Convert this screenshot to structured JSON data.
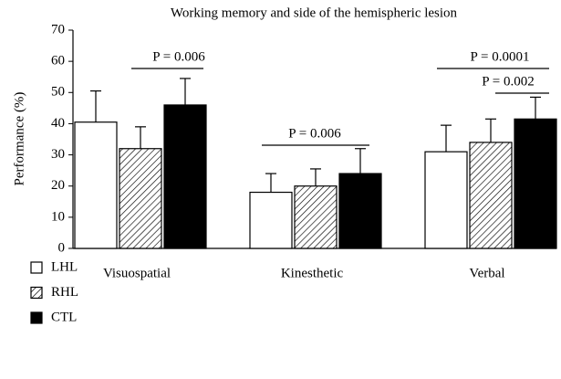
{
  "chart_data": {
    "type": "bar",
    "title": "Working memory and side of the hemispheric lesion",
    "y_label": "Performance (%)",
    "categories": [
      "Visuospatial",
      "Kinesthetic",
      "Verbal"
    ],
    "series": [
      {
        "name": "LHL",
        "color": "#ffffff",
        "pattern": "none",
        "values": [
          40.5,
          18,
          31
        ],
        "errors": [
          10,
          6,
          8.5
        ]
      },
      {
        "name": "RHL",
        "color": "#ffffff",
        "pattern": "hatch",
        "values": [
          32,
          20,
          34
        ],
        "errors": [
          7,
          5.5,
          7.5
        ]
      },
      {
        "name": "CTL",
        "color": "#000000",
        "pattern": "none",
        "values": [
          46,
          24,
          41.5
        ],
        "errors": [
          8.5,
          8,
          7
        ]
      }
    ],
    "annotations": [
      "P = 0.006",
      "P = 0.006",
      "P = 0.0001",
      "P = 0.002"
    ],
    "ylim": [
      0,
      70
    ],
    "yticks": [
      0,
      10,
      20,
      30,
      40,
      50,
      60,
      70
    ],
    "legend": "bottom-left"
  }
}
